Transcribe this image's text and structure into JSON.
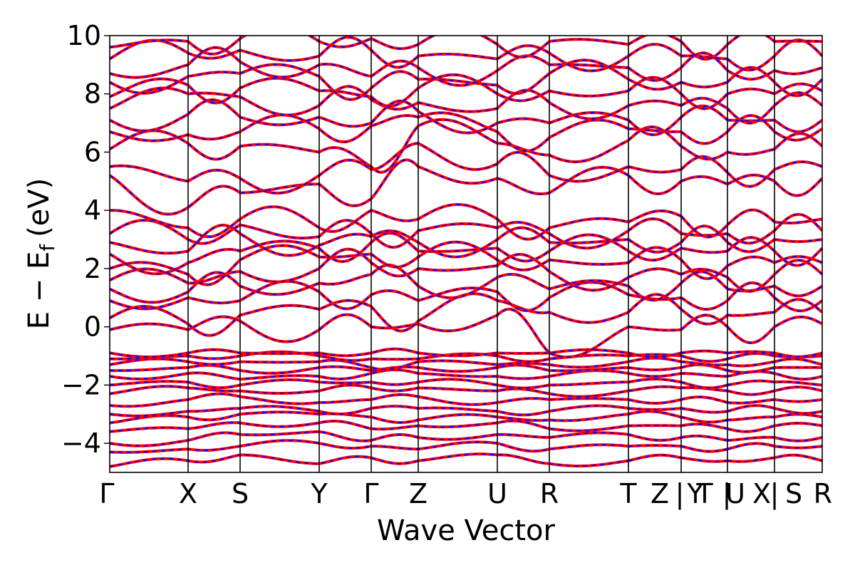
{
  "chart_data": {
    "type": "line",
    "title": "",
    "xlabel": "Wave Vector",
    "ylabel": "E − E",
    "ylabel_subscript": "f",
    "ylabel_unit": "(eV)",
    "ylim": [
      -5,
      10
    ],
    "y_ticks": [
      -4,
      -2,
      0,
      2,
      4,
      6,
      8,
      10
    ],
    "y_tick_labels": [
      "−4",
      "−2",
      "0",
      "2",
      "4",
      "6",
      "8",
      "10"
    ],
    "xlim": [
      0,
      10
    ],
    "k_points": [
      {
        "label": "Γ",
        "x": 0.0
      },
      {
        "label": "X",
        "x": 1.1
      },
      {
        "label": "S",
        "x": 1.83
      },
      {
        "label": "Y",
        "x": 2.94
      },
      {
        "label": "Γ",
        "x": 3.67
      },
      {
        "label": "Z",
        "x": 4.33
      },
      {
        "label": "U",
        "x": 5.44
      },
      {
        "label": "R",
        "x": 6.17
      },
      {
        "label": "T",
        "x": 7.28
      },
      {
        "label": "Z|Y",
        "x": 8.02
      },
      {
        "label": "T|U",
        "x": 8.67
      },
      {
        "label": "X|S",
        "x": 9.33
      },
      {
        "label": "R",
        "x": 10.0
      }
    ],
    "k_label_text": [
      "Γ",
      "X",
      "S",
      "Y",
      "Γ",
      "Z",
      "U",
      "R",
      "T",
      "Z",
      "|",
      "Y",
      "T",
      "|",
      "U",
      "X",
      "|",
      "S",
      "R"
    ],
    "series_styles": [
      {
        "color": "#ff0000",
        "style": "solid"
      },
      {
        "color": "#0000ff",
        "style": "dashed"
      }
    ],
    "band_anchor_energies": [
      [
        -4.8,
        -4.3,
        -4.0,
        -3.6,
        -3.3,
        -3.0,
        -2.7,
        -2.3,
        -2.0,
        -1.7,
        -1.5,
        -1.3,
        -1.1,
        -0.9,
        -0.1,
        0.3,
        0.9,
        1.3,
        1.6,
        2.0,
        2.5,
        2.9,
        3.2,
        4.0,
        5.2,
        5.5,
        6.1,
        6.7,
        7.1,
        7.5,
        7.9,
        8.4,
        8.7,
        9.2,
        9.6
      ],
      [
        -4.6,
        -4.2,
        -3.9,
        -3.5,
        -3.1,
        -2.9,
        -2.5,
        -2.1,
        -1.9,
        -1.6,
        -1.4,
        -1.2,
        -1.0,
        -0.9,
        -0.1,
        0.1,
        1.0,
        1.2,
        1.5,
        1.8,
        2.2,
        2.6,
        3.0,
        3.4,
        4.1,
        5.0,
        6.3,
        6.6,
        7.3,
        8.0,
        8.3,
        8.6,
        9.0,
        9.4,
        9.8
      ],
      [
        -4.4,
        -4.1,
        -3.7,
        -3.3,
        -3.0,
        -2.8,
        -2.4,
        -2.2,
        -2.0,
        -1.8,
        -1.5,
        -1.2,
        -1.0,
        -0.9,
        0.2,
        0.4,
        0.9,
        1.4,
        1.9,
        2.3,
        2.6,
        3.2,
        3.5,
        3.7,
        4.6,
        5.1,
        6.2,
        6.7,
        7.2,
        7.9,
        8.2,
        8.7,
        9.1,
        9.5,
        9.9
      ],
      [
        -4.7,
        -4.0,
        -3.6,
        -3.3,
        -3.0,
        -2.9,
        -2.6,
        -2.2,
        -1.9,
        -1.7,
        -1.4,
        -1.2,
        -1.0,
        -0.9,
        -0.1,
        0.6,
        1.2,
        1.5,
        2.0,
        2.4,
        2.7,
        2.8,
        3.1,
        3.4,
        4.9,
        5.2,
        6.0,
        6.8,
        7.2,
        7.6,
        8.1,
        8.6,
        9.0,
        9.3,
        9.8
      ],
      [
        -4.5,
        -4.1,
        -3.9,
        -3.5,
        -3.1,
        -2.8,
        -2.5,
        -2.1,
        -1.9,
        -1.6,
        -1.5,
        -1.4,
        -1.1,
        -0.9,
        0.0,
        0.7,
        1.1,
        1.8,
        2.2,
        2.5,
        2.9,
        3.1,
        3.2,
        4.0,
        4.4,
        5.4,
        5.5,
        6.9,
        7.0,
        7.8,
        7.9,
        8.2,
        8.6,
        9.5,
        9.9
      ],
      [
        -4.6,
        -4.2,
        -3.8,
        -3.4,
        -3.2,
        -2.8,
        -2.4,
        -2.1,
        -1.9,
        -1.6,
        -1.4,
        -1.2,
        -1.1,
        -0.9,
        0.1,
        0.2,
        0.9,
        1.4,
        2.0,
        2.4,
        2.6,
        2.9,
        3.3,
        3.7,
        5.5,
        6.3,
        6.9,
        7.2,
        7.4,
        7.7,
        8.2,
        8.5,
        8.9,
        9.3,
        9.7
      ],
      [
        -4.4,
        -4.0,
        -3.7,
        -3.3,
        -3.1,
        -2.9,
        -2.6,
        -2.2,
        -2.0,
        -1.7,
        -1.4,
        -1.3,
        -1.0,
        -0.9,
        0.4,
        0.9,
        1.2,
        1.7,
        2.1,
        2.3,
        2.7,
        3.0,
        3.4,
        3.7,
        5.1,
        5.6,
        6.3,
        6.7,
        7.0,
        7.5,
        8.0,
        8.3,
        8.8,
        9.2,
        9.7
      ],
      [
        -4.7,
        -4.2,
        -3.8,
        -3.5,
        -3.2,
        -2.9,
        -2.5,
        -2.3,
        -2.0,
        -1.7,
        -1.5,
        -1.3,
        -1.1,
        -0.9,
        -0.9,
        0.5,
        1.0,
        1.3,
        1.9,
        2.3,
        2.6,
        2.9,
        3.2,
        3.4,
        4.6,
        5.2,
        5.9,
        6.5,
        7.0,
        7.7,
        8.1,
        8.7,
        9.0,
        9.4,
        9.8
      ],
      [
        -4.6,
        -4.1,
        -3.7,
        -3.4,
        -3.0,
        -2.8,
        -2.5,
        -2.2,
        -1.9,
        -1.6,
        -1.4,
        -1.2,
        -1.0,
        -0.9,
        0.0,
        0.5,
        1.1,
        1.4,
        1.7,
        2.2,
        2.6,
        3.0,
        3.3,
        3.6,
        5.2,
        5.5,
        6.4,
        6.8,
        7.1,
        7.6,
        8.1,
        8.5,
        8.9,
        9.3,
        9.7
      ],
      [
        -4.5,
        -4.1,
        -3.8,
        -3.4,
        -3.1,
        -2.8,
        -2.5,
        -2.1,
        -1.9,
        -1.6,
        -1.4,
        -1.2,
        -1.0,
        -0.9,
        -0.1,
        0.6,
        1.0,
        1.5,
        1.8,
        2.3,
        2.7,
        2.9,
        3.2,
        3.8,
        5.0,
        5.4,
        6.2,
        6.7,
        7.2,
        7.6,
        8.0,
        8.4,
        8.9,
        9.3,
        9.8
      ],
      [
        -4.6,
        -4.2,
        -3.9,
        -3.5,
        -3.2,
        -2.9,
        -2.6,
        -2.2,
        -2.0,
        -1.7,
        -1.5,
        -1.3,
        -1.1,
        -0.9,
        0.0,
        0.4,
        0.9,
        1.3,
        1.7,
        2.1,
        2.6,
        2.9,
        3.2,
        3.5,
        4.9,
        5.3,
        6.0,
        6.7,
        7.1,
        7.5,
        8.0,
        8.4,
        8.8,
        9.2,
        9.7
      ],
      [
        -4.5,
        -4.1,
        -3.8,
        -3.4,
        -3.1,
        -2.8,
        -2.5,
        -2.2,
        -1.9,
        -1.6,
        -1.4,
        -1.2,
        -1.0,
        -0.9,
        0.0,
        0.5,
        1.0,
        1.4,
        1.8,
        2.2,
        2.6,
        3.0,
        3.3,
        3.6,
        5.0,
        5.4,
        6.1,
        6.7,
        7.1,
        7.6,
        8.0,
        8.4,
        8.8,
        9.3,
        9.8
      ],
      [
        -4.6,
        -4.1,
        -3.8,
        -3.4,
        -3.1,
        -2.9,
        -2.5,
        -2.2,
        -2.0,
        -1.7,
        -1.4,
        -1.3,
        -1.0,
        -0.9,
        0.1,
        0.5,
        0.9,
        1.4,
        1.8,
        2.2,
        2.7,
        3.0,
        3.3,
        3.7,
        5.1,
        5.5,
        6.2,
        6.8,
        7.1,
        7.6,
        8.1,
        8.5,
        8.9,
        9.3,
        9.8
      ]
    ]
  }
}
